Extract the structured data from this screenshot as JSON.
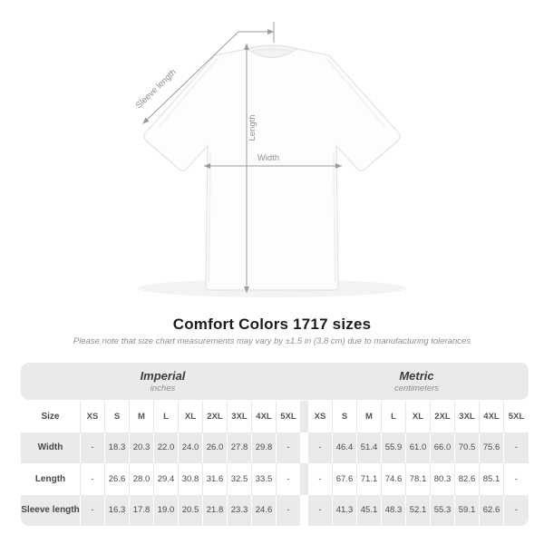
{
  "title": "Comfort Colors 1717 sizes",
  "subtitle": "Please note that size chart measurements may vary by ±1.5 in (3.8 cm) due to manufacturing tolerances",
  "diagram": {
    "sleeve_length_label": "Sleeve length",
    "length_label": "Length",
    "width_label": "Width"
  },
  "table": {
    "size_header": "Size",
    "sections": [
      {
        "label": "Imperial",
        "sublabel": "inches"
      },
      {
        "label": "Metric",
        "sublabel": "centimeters"
      }
    ],
    "sizes": [
      "XS",
      "S",
      "M",
      "L",
      "XL",
      "2XL",
      "3XL",
      "4XL",
      "5XL"
    ],
    "rows": [
      {
        "label": "Width",
        "imperial": [
          "-",
          "18.3",
          "20.3",
          "22.0",
          "24.0",
          "26.0",
          "27.8",
          "29.8",
          "-"
        ],
        "metric": [
          "-",
          "46.4",
          "51.4",
          "55.9",
          "61.0",
          "66.0",
          "70.5",
          "75.6",
          "-"
        ]
      },
      {
        "label": "Length",
        "imperial": [
          "-",
          "26.6",
          "28.0",
          "29.4",
          "30.8",
          "31.6",
          "32.5",
          "33.5",
          "-"
        ],
        "metric": [
          "-",
          "67.6",
          "71.1",
          "74.6",
          "78.1",
          "80.3",
          "82.6",
          "85.1",
          "-"
        ]
      },
      {
        "label": "Sleeve length",
        "imperial": [
          "-",
          "16.3",
          "17.8",
          "19.0",
          "20.5",
          "21.8",
          "23.3",
          "24.6",
          "-"
        ],
        "metric": [
          "-",
          "41.3",
          "45.1",
          "48.3",
          "52.1",
          "55.3",
          "59.1",
          "62.6",
          "-"
        ]
      }
    ]
  },
  "chart_data": {
    "type": "table",
    "title": "Comfort Colors 1717 sizes",
    "note": "Measurements may vary by ±1.5 in (3.8 cm)",
    "sections": [
      "Imperial (inches)",
      "Metric (centimeters)"
    ],
    "columns": [
      "XS",
      "S",
      "M",
      "L",
      "XL",
      "2XL",
      "3XL",
      "4XL",
      "5XL"
    ],
    "rows": [
      {
        "measure": "Width",
        "imperial_in": [
          null,
          18.3,
          20.3,
          22.0,
          24.0,
          26.0,
          27.8,
          29.8,
          null
        ],
        "metric_cm": [
          null,
          46.4,
          51.4,
          55.9,
          61.0,
          66.0,
          70.5,
          75.6,
          null
        ]
      },
      {
        "measure": "Length",
        "imperial_in": [
          null,
          26.6,
          28.0,
          29.4,
          30.8,
          31.6,
          32.5,
          33.5,
          null
        ],
        "metric_cm": [
          null,
          67.6,
          71.1,
          74.6,
          78.1,
          80.3,
          82.6,
          85.1,
          null
        ]
      },
      {
        "measure": "Sleeve length",
        "imperial_in": [
          null,
          16.3,
          17.8,
          19.0,
          20.5,
          21.8,
          23.3,
          24.6,
          null
        ],
        "metric_cm": [
          null,
          41.3,
          45.1,
          48.3,
          52.1,
          55.3,
          59.1,
          62.6,
          null
        ]
      }
    ]
  },
  "colors": {
    "table_gray": "#e9eaea",
    "row_separator": "#e7e7e7",
    "annotation_gray": "#9b9b9b",
    "title_text": "#1c1c1c",
    "muted_text": "#8e8e8e",
    "value_text": "#4a4a4a"
  }
}
